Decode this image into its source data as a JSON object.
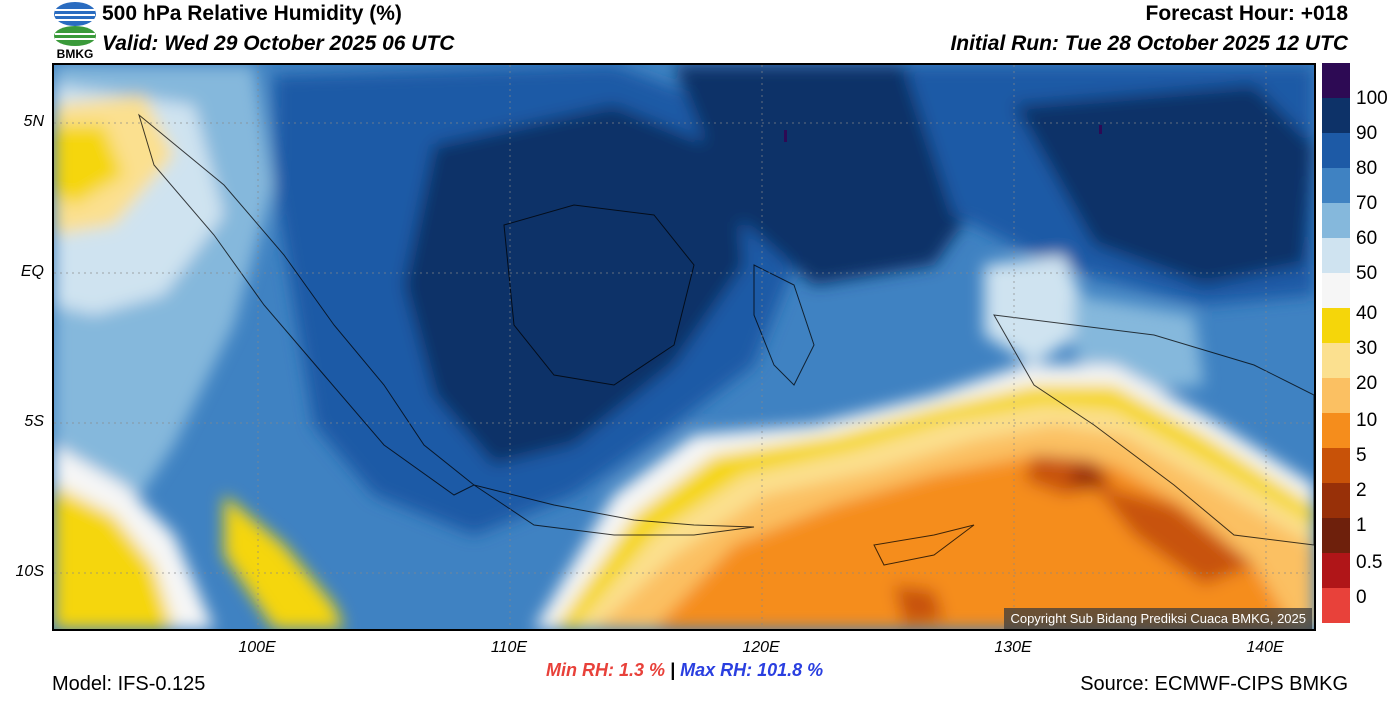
{
  "header": {
    "title": "500 hPa Relative Humidity (%)",
    "valid": "Valid: Wed 29 October 2025 06 UTC",
    "forecast_hour": "Forecast Hour: +018",
    "initial_run": "Initial Run: Tue 28 October 2025 12 UTC",
    "logo_text": "BMKG"
  },
  "map": {
    "lat_labels": [
      "5N",
      "EQ",
      "5S",
      "10S"
    ],
    "lon_labels": [
      "100E",
      "110E",
      "120E",
      "130E",
      "140E"
    ],
    "copyright": "Copyright Sub Bidang Prediksi Cuaca BMKG, 2025"
  },
  "colorbar": {
    "labels": [
      "100",
      "90",
      "80",
      "70",
      "60",
      "50",
      "40",
      "30",
      "20",
      "10",
      "5",
      "2",
      "1",
      "0.5",
      "0"
    ],
    "colors": [
      "#2d0a54",
      "#0d3268",
      "#1d5aa6",
      "#3f82c2",
      "#85b8dc",
      "#cfe3f0",
      "#f6f6f6",
      "#f5d60a",
      "#fbe08f",
      "#fbc062",
      "#f58d1c",
      "#c85208",
      "#983008",
      "#6e200c",
      "#b01518",
      "#e8413a"
    ]
  },
  "stats": {
    "min_rh": "Min RH:   1.3 %",
    "separator": "|",
    "max_rh": "Max RH: 101.8 %"
  },
  "footer": {
    "model": "Model: IFS-0.125",
    "source": "Source: ECMWF-CIPS BMKG"
  }
}
